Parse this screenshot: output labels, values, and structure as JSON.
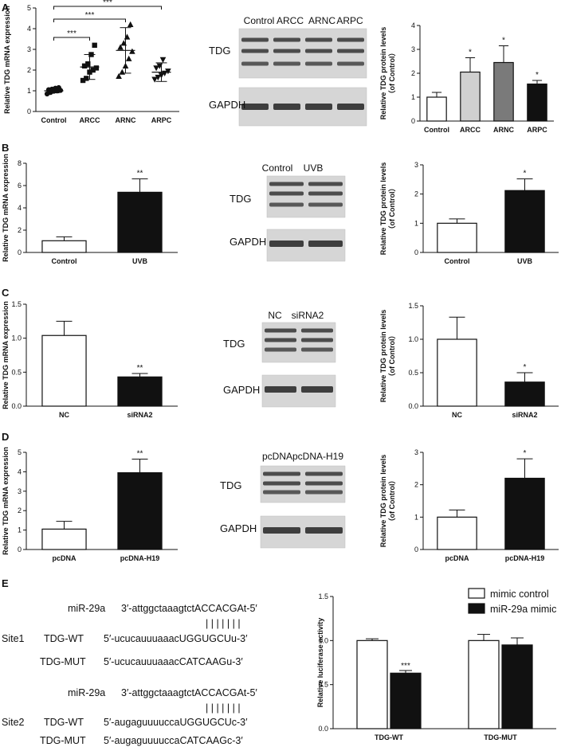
{
  "figure": {
    "panel_labels": [
      "A",
      "B",
      "C",
      "D",
      "E"
    ]
  },
  "colors": {
    "white": "#ffffff",
    "black": "#111111",
    "gray_light": "#d0d0d0",
    "gray_dark": "#7a7a7a"
  },
  "blots": {
    "a": {
      "lanes": [
        "Control",
        "ARCC",
        "ARNC",
        "ARPC"
      ],
      "rows": [
        "TDG",
        "GAPDH"
      ]
    },
    "b": {
      "lanes": [
        "Control",
        "UVB"
      ],
      "rows": [
        "TDG",
        "GAPDH"
      ]
    },
    "c": {
      "lanes": [
        "NC",
        "siRNA2"
      ],
      "rows": [
        "TDG",
        "GAPDH"
      ]
    },
    "d": {
      "lanes": [
        "pcDNA",
        "pcDNA-H19"
      ],
      "rows": [
        "TDG",
        "GAPDH"
      ]
    }
  },
  "panel_e": {
    "sites": [
      {
        "name": "Site1",
        "mir_label": "miR-29a",
        "mir_seq": "3′-attggctaaagtctACCACGAt-5′",
        "pairs": "| | | | | | |",
        "wt_label": "TDG-WT",
        "wt_seq": "5′-ucucauuuaaacUGGUGCUu-3′",
        "mut_label": "TDG-MUT",
        "mut_seq": "5′-ucucauuuaaacCATCAAGu-3′"
      },
      {
        "name": "Site2",
        "mir_label": "miR-29a",
        "mir_seq": "3′-attggctaaagtctACCACGAt-5′",
        "pairs": "| | | | | | |",
        "wt_label": "TDG-WT",
        "wt_seq": "5′-augaguuuuccaUGGUGCUc-3′",
        "mut_label": "TDG-MUT",
        "mut_seq": "5′-augaguuuuccaCATCAAGc-3′"
      }
    ]
  },
  "chart_data": [
    {
      "id": "A1",
      "type": "scatter",
      "ylabel": "Relative TDG mRNA expression",
      "ylim": [
        0,
        5
      ],
      "yticks": [
        0,
        1,
        2,
        3,
        4,
        5
      ],
      "categories": [
        "Control",
        "ARCC",
        "ARNC",
        "ARPC"
      ],
      "markers": [
        "circle",
        "square",
        "triangle",
        "triangle-down"
      ],
      "points": [
        [
          0.85,
          0.92,
          0.98,
          1.0,
          1.02,
          1.05,
          1.08,
          1.12,
          1.15
        ],
        [
          1.5,
          1.6,
          1.9,
          2.0,
          2.1,
          2.2,
          2.3,
          2.75,
          3.2
        ],
        [
          1.7,
          1.9,
          2.2,
          2.55,
          2.9,
          3.1,
          3.3,
          3.6,
          4.2
        ],
        [
          1.55,
          1.65,
          1.75,
          1.85,
          1.95,
          2.1,
          2.2,
          2.5
        ]
      ],
      "means": [
        1.0,
        2.15,
        2.95,
        1.9
      ],
      "sd": [
        0.1,
        0.6,
        1.1,
        0.45
      ],
      "comparisons": [
        {
          "from": 0,
          "to": 1,
          "label": "***"
        },
        {
          "from": 0,
          "to": 2,
          "label": "***"
        },
        {
          "from": 0,
          "to": 3,
          "label": "***"
        }
      ]
    },
    {
      "id": "A2",
      "type": "bar",
      "ylabel": "Relative TDG protein levels",
      "ylabel2": "（of Control）",
      "ylim": [
        0,
        4
      ],
      "yticks": [
        0,
        1,
        2,
        3,
        4
      ],
      "categories": [
        "Control",
        "ARCC",
        "ARNC",
        "ARPC"
      ],
      "values": [
        1.0,
        2.05,
        2.45,
        1.55
      ],
      "errors": [
        0.2,
        0.6,
        0.7,
        0.15
      ],
      "fills": [
        "#ffffff",
        "#d0d0d0",
        "#7a7a7a",
        "#111111"
      ],
      "sig": [
        "",
        "*",
        "*",
        "*"
      ]
    },
    {
      "id": "B1",
      "type": "bar",
      "ylabel": "Relative TDG mRNA expression",
      "ylim": [
        0,
        8
      ],
      "yticks": [
        0,
        2,
        4,
        6,
        8
      ],
      "categories": [
        "Control",
        "UVB"
      ],
      "values": [
        1.05,
        5.4
      ],
      "errors": [
        0.35,
        1.2
      ],
      "fills": [
        "#ffffff",
        "#111111"
      ],
      "sig": [
        "",
        "**"
      ]
    },
    {
      "id": "B2",
      "type": "bar",
      "ylabel": "Relative TDG protein levels",
      "ylabel2": "（of Control）",
      "ylim": [
        0,
        3
      ],
      "yticks": [
        0,
        1,
        2,
        3
      ],
      "categories": [
        "Control",
        "UVB"
      ],
      "values": [
        1.0,
        2.12
      ],
      "errors": [
        0.15,
        0.4
      ],
      "fills": [
        "#ffffff",
        "#111111"
      ],
      "sig": [
        "",
        "*"
      ]
    },
    {
      "id": "C1",
      "type": "bar",
      "ylabel": "Relative TDG mRNA expression",
      "ylim": [
        0,
        1.5
      ],
      "yticks": [
        0.0,
        0.5,
        1.0,
        1.5
      ],
      "ytick_decimals": 1,
      "categories": [
        "NC",
        "siRNA2"
      ],
      "values": [
        1.04,
        0.43
      ],
      "errors": [
        0.21,
        0.05
      ],
      "fills": [
        "#ffffff",
        "#111111"
      ],
      "sig": [
        "",
        "**"
      ]
    },
    {
      "id": "C2",
      "type": "bar",
      "ylabel": "Relative TDG protein levels",
      "ylabel2": "（of Control）",
      "ylim": [
        0,
        1.5
      ],
      "yticks": [
        0.0,
        0.5,
        1.0,
        1.5
      ],
      "ytick_decimals": 1,
      "categories": [
        "NC",
        "siRNA2"
      ],
      "values": [
        1.0,
        0.36
      ],
      "errors": [
        0.33,
        0.14
      ],
      "fills": [
        "#ffffff",
        "#111111"
      ],
      "sig": [
        "",
        "*"
      ]
    },
    {
      "id": "D1",
      "type": "bar",
      "ylabel": "Relative TDG mRNA expression",
      "ylim": [
        0,
        5
      ],
      "yticks": [
        0,
        1,
        2,
        3,
        4,
        5
      ],
      "categories": [
        "pcDNA",
        "pcDNA-H19"
      ],
      "values": [
        1.05,
        3.95
      ],
      "errors": [
        0.4,
        0.7
      ],
      "fills": [
        "#ffffff",
        "#111111"
      ],
      "sig": [
        "",
        "**"
      ]
    },
    {
      "id": "D2",
      "type": "bar",
      "ylabel": "Relative TDG protein levels",
      "ylabel2": "（of Control）",
      "ylim": [
        0,
        3
      ],
      "yticks": [
        0,
        1,
        2,
        3
      ],
      "categories": [
        "pcDNA",
        "pcDNA-H19"
      ],
      "values": [
        1.0,
        2.2
      ],
      "errors": [
        0.22,
        0.6
      ],
      "fills": [
        "#ffffff",
        "#111111"
      ],
      "sig": [
        "",
        "*"
      ]
    },
    {
      "id": "E1",
      "type": "bar",
      "ylabel": "Relative luciferase activity",
      "ylim": [
        0,
        1.5
      ],
      "yticks": [
        0.0,
        0.5,
        1.0,
        1.5
      ],
      "ytick_decimals": 1,
      "categories": [
        "TDG-WT",
        "TDG-MUT"
      ],
      "series": [
        {
          "name": "mimic control",
          "fill": "#ffffff",
          "values": [
            1.0,
            1.0
          ],
          "errors": [
            0.02,
            0.07
          ],
          "sig": [
            "",
            ""
          ]
        },
        {
          "name": "miR-29a mimic",
          "fill": "#111111",
          "values": [
            0.63,
            0.95
          ],
          "errors": [
            0.03,
            0.08
          ],
          "sig": [
            "***",
            ""
          ]
        }
      ],
      "legend": "top-right"
    }
  ]
}
